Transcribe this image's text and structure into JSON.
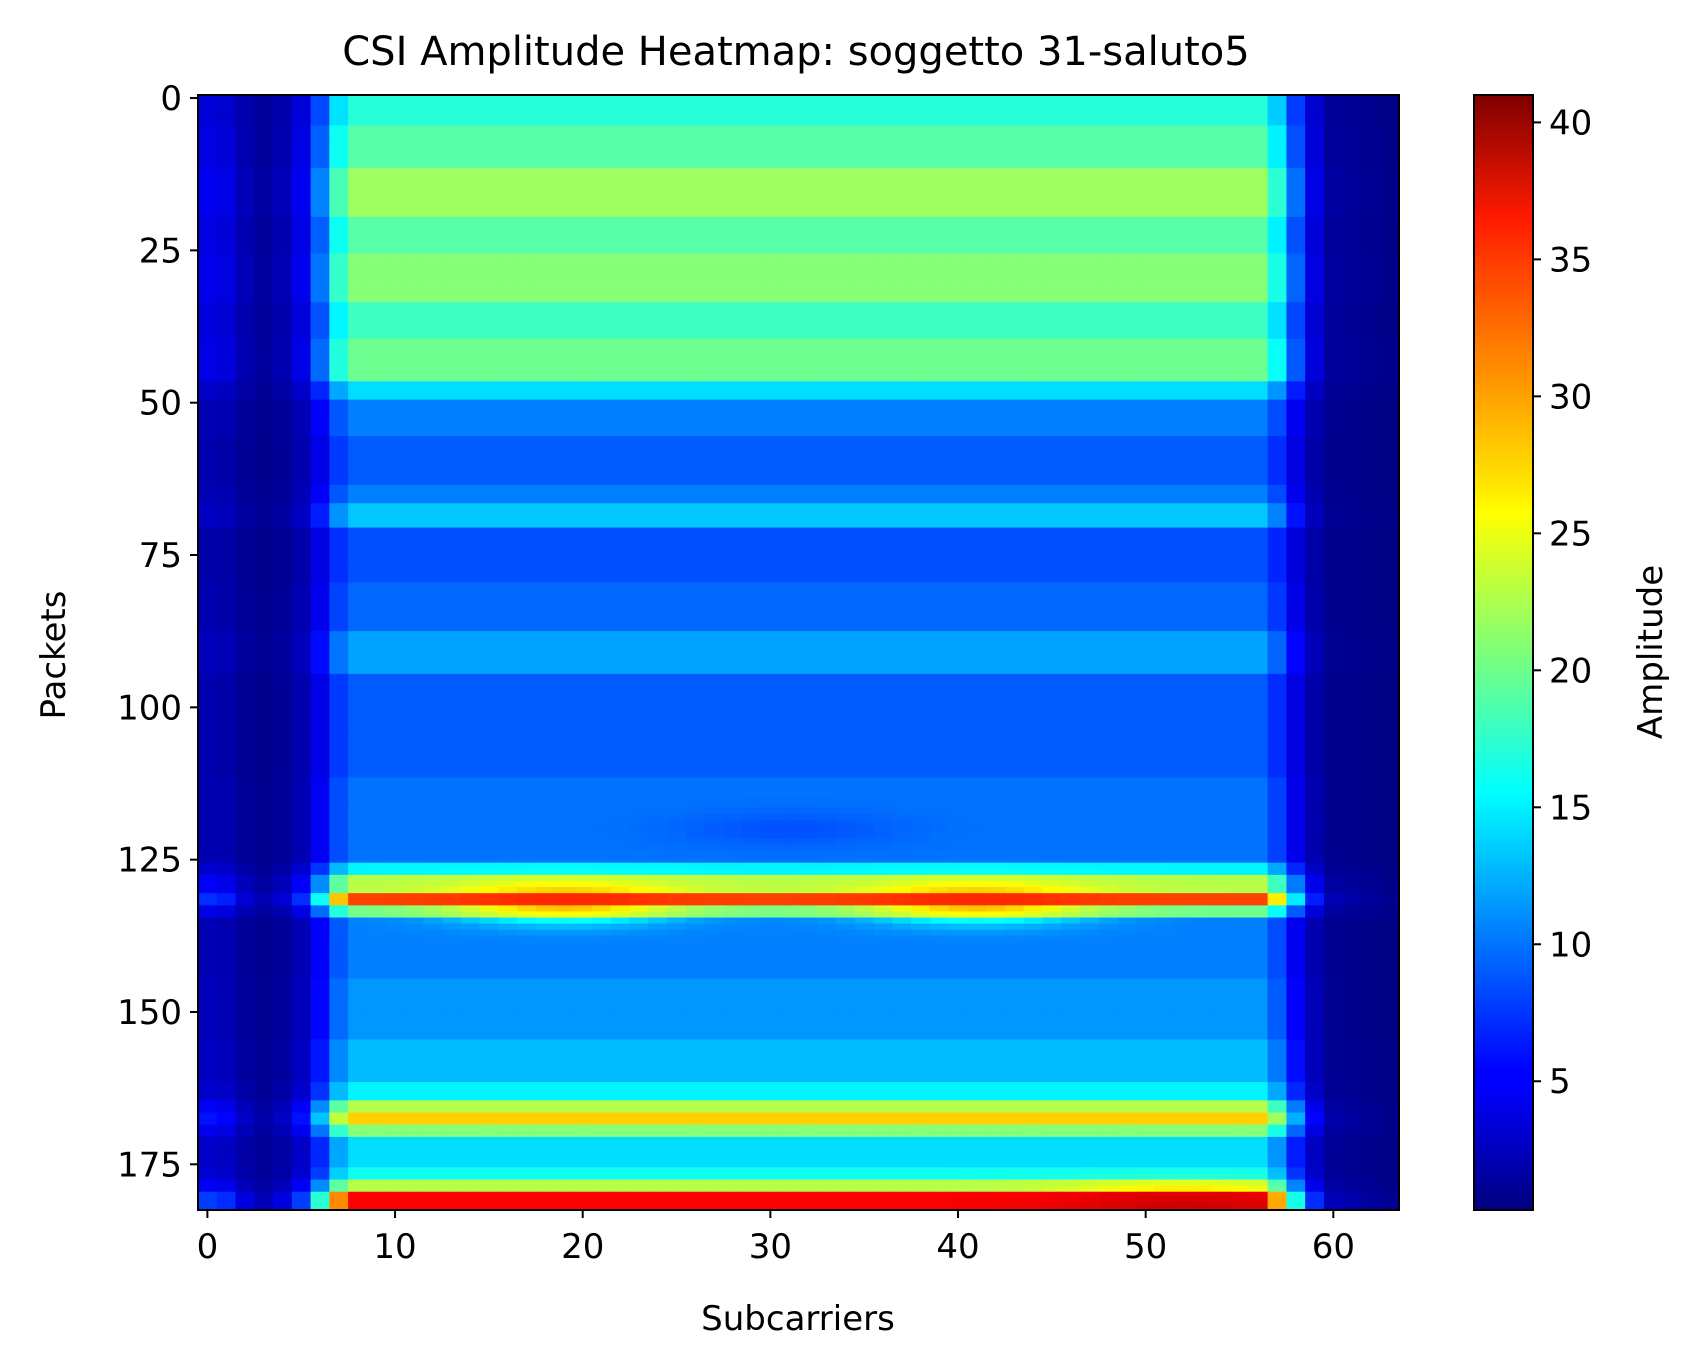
{
  "chart_data": {
    "type": "heatmap",
    "title": "CSI Amplitude Heatmap: soggetto 31-saluto5",
    "xlabel": "Subcarriers",
    "ylabel": "Packets",
    "colorbar_label": "Amplitude",
    "colormap": "jet",
    "x_range": [
      0,
      63
    ],
    "y_range": [
      0,
      183
    ],
    "y_inverted": true,
    "value_range": [
      0.3,
      41
    ],
    "x_ticks": [
      0,
      10,
      20,
      30,
      40,
      50,
      60
    ],
    "y_ticks": [
      0,
      25,
      50,
      75,
      100,
      125,
      150,
      175
    ],
    "colorbar_ticks": [
      5,
      10,
      15,
      20,
      25,
      30,
      35,
      40
    ],
    "column_profile": [
      {
        "subcarrier": 0,
        "relative": 0.2
      },
      {
        "subcarrier": 1,
        "relative": 0.18
      },
      {
        "subcarrier": 2,
        "relative": 0.1
      },
      {
        "subcarrier": 3,
        "relative": 0.06
      },
      {
        "subcarrier": 4,
        "relative": 0.1
      },
      {
        "subcarrier": 5,
        "relative": 0.2
      },
      {
        "subcarrier": 6,
        "relative": 0.45
      },
      {
        "subcarrier": 7,
        "relative": 0.8
      },
      {
        "subcarrier": 8,
        "relative": 0.95
      },
      {
        "subcarrier": 56,
        "relative": 0.95
      },
      {
        "subcarrier": 57,
        "relative": 0.75
      },
      {
        "subcarrier": 58,
        "relative": 0.42
      },
      {
        "subcarrier": 59,
        "relative": 0.18
      },
      {
        "subcarrier": 60,
        "relative": 0.06
      },
      {
        "subcarrier": 63,
        "relative": 0.02
      }
    ],
    "row_bands": [
      {
        "packets": [
          0,
          5
        ],
        "amplitude": 18
      },
      {
        "packets": [
          5,
          12
        ],
        "amplitude": 20
      },
      {
        "packets": [
          12,
          20
        ],
        "amplitude": 23
      },
      {
        "packets": [
          20,
          26
        ],
        "amplitude": 20
      },
      {
        "packets": [
          26,
          34
        ],
        "amplitude": 22
      },
      {
        "packets": [
          34,
          40
        ],
        "amplitude": 19
      },
      {
        "packets": [
          40,
          47
        ],
        "amplitude": 21
      },
      {
        "packets": [
          47,
          50
        ],
        "amplitude": 15
      },
      {
        "packets": [
          50,
          56
        ],
        "amplitude": 11
      },
      {
        "packets": [
          56,
          64
        ],
        "amplitude": 9.5
      },
      {
        "packets": [
          64,
          67
        ],
        "amplitude": 11
      },
      {
        "packets": [
          67,
          71
        ],
        "amplitude": 14
      },
      {
        "packets": [
          71,
          80
        ],
        "amplitude": 9
      },
      {
        "packets": [
          80,
          88
        ],
        "amplitude": 10
      },
      {
        "packets": [
          88,
          95
        ],
        "amplitude": 12.5
      },
      {
        "packets": [
          95,
          112
        ],
        "amplitude": 9.5
      },
      {
        "packets": [
          112,
          126
        ],
        "amplitude": 10.5
      },
      {
        "packets": [
          126,
          128
        ],
        "amplitude": 16
      },
      {
        "packets": [
          128,
          131
        ],
        "amplitude": 24
      },
      {
        "packets": [
          131,
          133
        ],
        "amplitude": 35
      },
      {
        "packets": [
          133,
          135
        ],
        "amplitude": 21
      },
      {
        "packets": [
          135,
          145
        ],
        "amplitude": 11
      },
      {
        "packets": [
          145,
          155
        ],
        "amplitude": 12
      },
      {
        "packets": [
          155,
          162
        ],
        "amplitude": 13.5
      },
      {
        "packets": [
          162,
          165
        ],
        "amplitude": 16
      },
      {
        "packets": [
          165,
          167
        ],
        "amplitude": 24
      },
      {
        "packets": [
          167,
          169
        ],
        "amplitude": 29
      },
      {
        "packets": [
          169,
          171
        ],
        "amplitude": 22
      },
      {
        "packets": [
          171,
          176
        ],
        "amplitude": 15
      },
      {
        "packets": [
          176,
          178
        ],
        "amplitude": 17
      },
      {
        "packets": [
          178,
          180
        ],
        "amplitude": 24
      },
      {
        "packets": [
          180,
          183
        ],
        "amplitude": 38
      }
    ],
    "hotspots": [
      {
        "subcarrier": 19,
        "packet": 132,
        "amplitude": 37
      },
      {
        "subcarrier": 41,
        "packet": 132,
        "amplitude": 37
      },
      {
        "subcarrier": 52,
        "packet": 182,
        "amplitude": 41
      },
      {
        "subcarrier": 31,
        "packet": 120,
        "amplitude": 8
      }
    ]
  }
}
